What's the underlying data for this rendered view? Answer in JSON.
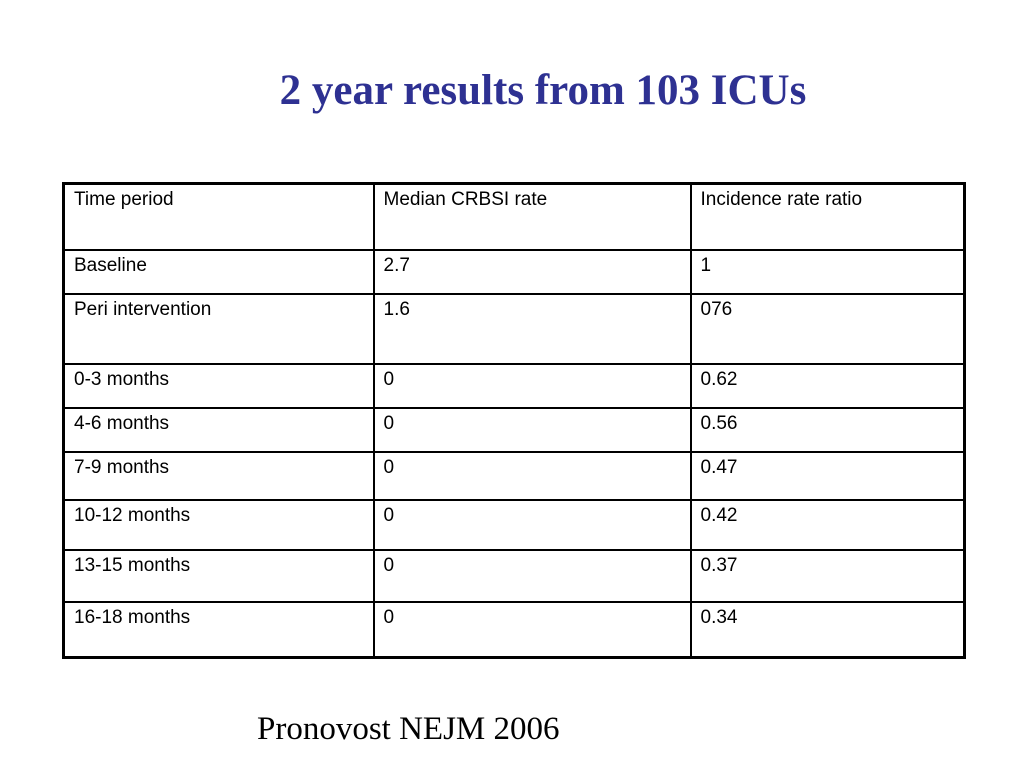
{
  "slide": {
    "title": "2 year results from 103 ICUs",
    "title_color": "#2E3192",
    "footer_citation": "Pronovost NEJM 2006",
    "background_color": "#ffffff"
  },
  "table": {
    "headers": [
      "Time period",
      "Median CRBSI rate",
      "Incidence rate ratio"
    ],
    "rows": [
      [
        "Baseline",
        "2.7",
        "1"
      ],
      [
        "Peri intervention",
        "1.6",
        "076"
      ],
      [
        "0-3 months",
        "0",
        "0.62"
      ],
      [
        "4-6 months",
        "0",
        "0.56"
      ],
      [
        "7-9 months",
        "0",
        "0.47"
      ],
      [
        "10-12 months",
        "0",
        "0.42"
      ],
      [
        "13-15 months",
        "0",
        "0.37"
      ],
      [
        "16-18 months",
        "0",
        "0.34"
      ]
    ],
    "border_color": "#000000"
  },
  "chart_data": {
    "type": "table",
    "title": "2 year results from 103 ICUs",
    "categories": [
      "Baseline",
      "Peri intervention",
      "0-3 months",
      "4-6 months",
      "7-9 months",
      "10-12 months",
      "13-15 months",
      "16-18 months"
    ],
    "series": [
      {
        "name": "Median CRBSI rate",
        "values": [
          "2.7",
          "1.6",
          "0",
          "0",
          "0",
          "0",
          "0",
          "0"
        ]
      },
      {
        "name": "Incidence rate ratio",
        "values": [
          "1",
          "076",
          "0.62",
          "0.56",
          "0.47",
          "0.42",
          "0.37",
          "0.34"
        ]
      }
    ],
    "annotations": [
      "Pronovost NEJM 2006"
    ]
  }
}
